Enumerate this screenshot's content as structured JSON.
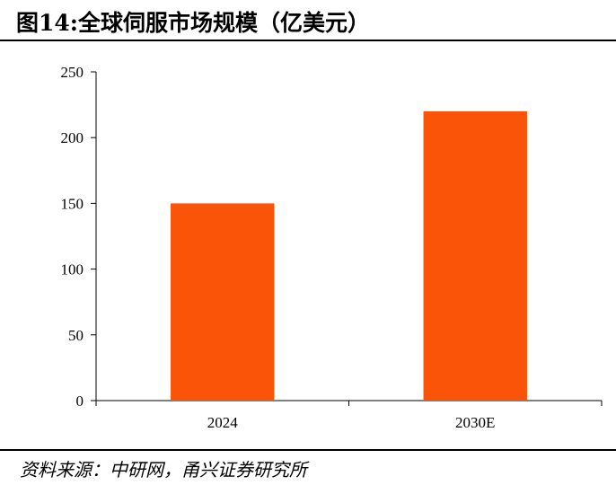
{
  "title": "图14:全球伺服市场规模（亿美元）",
  "source": "资料来源：中研网，甬兴证券研究所",
  "colors": {
    "bar": "#f95407",
    "axis": "#000000"
  },
  "chart_data": {
    "type": "bar",
    "categories": [
      "2024",
      "2030E"
    ],
    "values": [
      150,
      220
    ],
    "ylim": [
      0,
      250
    ],
    "yticks": [
      0,
      50,
      100,
      150,
      200,
      250
    ],
    "grid": false,
    "legend": "none"
  }
}
